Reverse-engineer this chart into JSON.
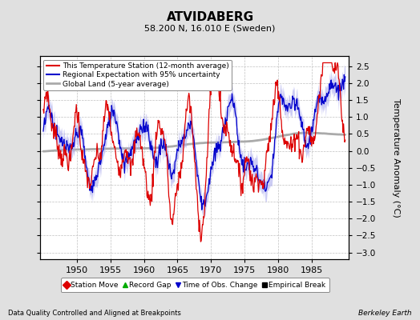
{
  "title": "ATVIDABERG",
  "subtitle": "58.200 N, 16.010 E (Sweden)",
  "ylabel": "Temperature Anomaly (°C)",
  "xlabel_left": "Data Quality Controlled and Aligned at Breakpoints",
  "xlabel_right": "Berkeley Earth",
  "ylim": [
    -3.2,
    2.8
  ],
  "xlim": [
    1944.5,
    1990.5
  ],
  "yticks": [
    -3,
    -2.5,
    -2,
    -1.5,
    -1,
    -0.5,
    0,
    0.5,
    1,
    1.5,
    2,
    2.5
  ],
  "xticks": [
    1950,
    1955,
    1960,
    1965,
    1970,
    1975,
    1980,
    1985
  ],
  "bg_color": "#e0e0e0",
  "plot_bg_color": "#ffffff",
  "grid_color": "#c0c0c0",
  "station_color": "#dd0000",
  "regional_color": "#0000cc",
  "regional_fill_color": "#aaaaee",
  "global_color": "#aaaaaa",
  "legend_items": [
    {
      "label": "This Temperature Station (12-month average)",
      "color": "#dd0000",
      "lw": 1.2
    },
    {
      "label": "Regional Expectation with 95% uncertainty",
      "color": "#0000cc",
      "lw": 1.2
    },
    {
      "label": "Global Land (5-year average)",
      "color": "#aaaaaa",
      "lw": 2.0
    }
  ],
  "bottom_legend": [
    {
      "label": "Station Move",
      "color": "#dd0000",
      "marker": "D"
    },
    {
      "label": "Record Gap",
      "color": "#00aa00",
      "marker": "^"
    },
    {
      "label": "Time of Obs. Change",
      "color": "#0000cc",
      "marker": "v"
    },
    {
      "label": "Empirical Break",
      "color": "#000000",
      "marker": "s"
    }
  ]
}
